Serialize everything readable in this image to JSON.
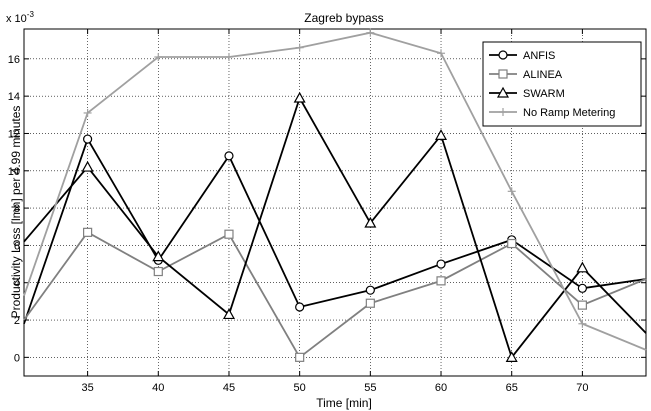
{
  "chart_data": {
    "type": "line",
    "title": "Zagreb bypass",
    "xlabel": "Time [min]",
    "ylabel": "Productivity Loss [lmh] per 4.99 minutes",
    "y_exponent_label": "x 10",
    "y_exponent_power": "-3",
    "xlim": [
      30.5,
      74.5
    ],
    "ylim": [
      -1,
      17.6
    ],
    "xticks": [
      35,
      40,
      45,
      50,
      55,
      60,
      65,
      70
    ],
    "yticks": [
      0,
      2,
      4,
      6,
      8,
      10,
      12,
      14,
      16
    ],
    "grid": true,
    "legend_position": "top-right",
    "series": [
      {
        "name": "ANFIS",
        "color": "#000000",
        "marker": "circle",
        "x": [
          30.5,
          35,
          40,
          45,
          50,
          55,
          60,
          65,
          70,
          74.5
        ],
        "y": [
          1.8,
          11.7,
          5.2,
          10.8,
          2.7,
          3.6,
          5.0,
          6.3,
          3.7,
          4.2
        ]
      },
      {
        "name": "ALINEA",
        "color": "#808080",
        "marker": "square",
        "x": [
          30.5,
          35,
          40,
          45,
          50,
          55,
          60,
          65,
          70,
          74.5
        ],
        "y": [
          2.0,
          6.7,
          4.6,
          6.6,
          0.0,
          2.9,
          4.1,
          6.1,
          2.8,
          4.2
        ]
      },
      {
        "name": "SWARM",
        "color": "#000000",
        "marker": "triangle",
        "x": [
          30.5,
          35,
          40,
          45,
          50,
          55,
          60,
          65,
          70,
          74.5
        ],
        "y": [
          6.2,
          10.2,
          5.4,
          2.3,
          13.9,
          7.2,
          11.9,
          0.0,
          4.8,
          1.3
        ]
      },
      {
        "name": "No Ramp Metering",
        "color": "#a0a0a0",
        "marker": "plus",
        "x": [
          30.5,
          35,
          40,
          45,
          50,
          55,
          60,
          65,
          70,
          74.5
        ],
        "y": [
          3.3,
          13.1,
          16.1,
          16.1,
          16.6,
          17.4,
          16.3,
          8.9,
          1.8,
          0.4
        ]
      }
    ]
  }
}
